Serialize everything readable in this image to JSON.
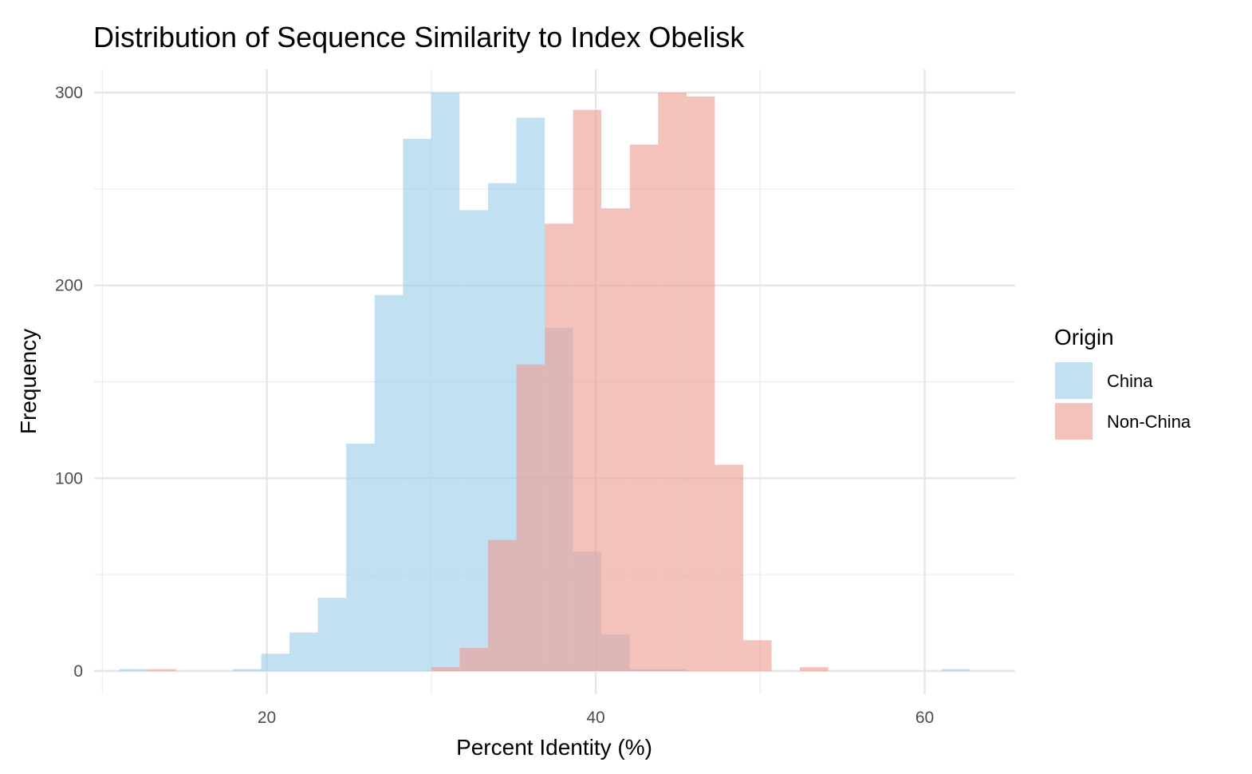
{
  "chart_data": {
    "type": "bar",
    "subtype": "histogram",
    "title": "Distribution of Sequence Similarity to Index Obelisk",
    "xlabel": "Percent Identity (%)",
    "ylabel": "Frequency",
    "xlim": [
      9.5,
      65.5
    ],
    "ylim": [
      -12,
      312
    ],
    "x_ticks": [
      20,
      40,
      60
    ],
    "y_ticks": [
      0,
      100,
      200,
      300
    ],
    "x_tick_labels": [
      "20",
      "40",
      "60"
    ],
    "y_tick_labels": [
      "0",
      "100",
      "200",
      "300"
    ],
    "grid": true,
    "bin_width": 1.724,
    "legend": {
      "title": "Origin",
      "position": "right"
    },
    "series": [
      {
        "name": "China",
        "color": "#9FCFEB",
        "bins": [
          {
            "x0": 11.04,
            "x1": 12.76,
            "y": 1
          },
          {
            "x0": 17.93,
            "x1": 19.66,
            "y": 1
          },
          {
            "x0": 19.66,
            "x1": 21.38,
            "y": 9
          },
          {
            "x0": 21.38,
            "x1": 23.1,
            "y": 20
          },
          {
            "x0": 23.1,
            "x1": 24.83,
            "y": 38
          },
          {
            "x0": 24.83,
            "x1": 26.55,
            "y": 118
          },
          {
            "x0": 26.55,
            "x1": 28.28,
            "y": 195
          },
          {
            "x0": 28.28,
            "x1": 30.0,
            "y": 276
          },
          {
            "x0": 30.0,
            "x1": 31.72,
            "y": 300
          },
          {
            "x0": 31.72,
            "x1": 33.45,
            "y": 239
          },
          {
            "x0": 33.45,
            "x1": 35.17,
            "y": 253
          },
          {
            "x0": 35.17,
            "x1": 36.9,
            "y": 287
          },
          {
            "x0": 36.9,
            "x1": 38.62,
            "y": 178
          },
          {
            "x0": 38.62,
            "x1": 40.34,
            "y": 62
          },
          {
            "x0": 40.34,
            "x1": 42.07,
            "y": 19
          },
          {
            "x0": 42.07,
            "x1": 43.79,
            "y": 1
          },
          {
            "x0": 43.79,
            "x1": 45.52,
            "y": 1
          },
          {
            "x0": 61.03,
            "x1": 62.76,
            "y": 1
          }
        ]
      },
      {
        "name": "Non-China",
        "color": "#EDA197",
        "bins": [
          {
            "x0": 12.76,
            "x1": 14.48,
            "y": 1
          },
          {
            "x0": 30.0,
            "x1": 31.72,
            "y": 2
          },
          {
            "x0": 31.72,
            "x1": 33.45,
            "y": 12
          },
          {
            "x0": 33.45,
            "x1": 35.17,
            "y": 68
          },
          {
            "x0": 35.17,
            "x1": 36.9,
            "y": 159
          },
          {
            "x0": 36.9,
            "x1": 38.62,
            "y": 232
          },
          {
            "x0": 38.62,
            "x1": 40.34,
            "y": 291
          },
          {
            "x0": 40.34,
            "x1": 42.07,
            "y": 240
          },
          {
            "x0": 42.07,
            "x1": 43.79,
            "y": 273
          },
          {
            "x0": 43.79,
            "x1": 45.52,
            "y": 300
          },
          {
            "x0": 45.52,
            "x1": 47.24,
            "y": 298
          },
          {
            "x0": 47.24,
            "x1": 48.97,
            "y": 107
          },
          {
            "x0": 48.97,
            "x1": 50.69,
            "y": 16
          },
          {
            "x0": 52.41,
            "x1": 54.14,
            "y": 2
          }
        ]
      }
    ]
  }
}
